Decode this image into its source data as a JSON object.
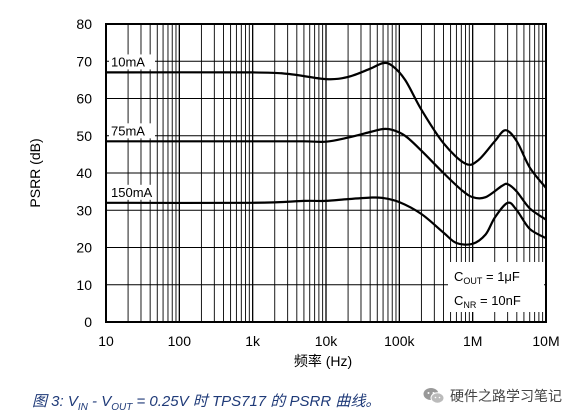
{
  "chart_data": {
    "type": "line",
    "title": "",
    "xlabel": "频率 (Hz)",
    "ylabel": "PSRR (dB)",
    "xscale": "log",
    "xlim": [
      10,
      10000000
    ],
    "ylim": [
      0,
      80
    ],
    "xticks": [
      {
        "value": 10,
        "label": "10"
      },
      {
        "value": 100,
        "label": "100"
      },
      {
        "value": 1000,
        "label": "1k"
      },
      {
        "value": 10000,
        "label": "10k"
      },
      {
        "value": 100000,
        "label": "100k"
      },
      {
        "value": 1000000,
        "label": "1M"
      },
      {
        "value": 10000000,
        "label": "10M"
      }
    ],
    "yticks": [
      0,
      10,
      20,
      30,
      40,
      50,
      60,
      70,
      80
    ],
    "grid": true,
    "series": [
      {
        "name": "10mA",
        "x": [
          10,
          1000,
          3000,
          10000,
          20000,
          40000,
          60000,
          80000,
          120000,
          200000,
          400000,
          800000,
          1200000,
          2000000,
          2800000,
          4000000,
          6000000,
          10000000
        ],
        "y": [
          67,
          67,
          66.6,
          65.2,
          65.8,
          68,
          69.5,
          68.8,
          65,
          57,
          48,
          42.5,
          43.5,
          48.5,
          51.5,
          48.5,
          41.5,
          36
        ]
      },
      {
        "name": "75mA",
        "x": [
          10,
          1000,
          5000,
          10000,
          20000,
          40000,
          60000,
          80000,
          120000,
          200000,
          400000,
          700000,
          1000000,
          1500000,
          2500000,
          3000000,
          4000000,
          6000000,
          10000000
        ],
        "y": [
          48.5,
          48.5,
          48.5,
          48.4,
          49.5,
          51,
          51.8,
          51.6,
          50,
          46,
          40,
          35.5,
          33.5,
          33.5,
          36.5,
          37,
          35,
          30.5,
          27.5
        ]
      },
      {
        "name": "150mA",
        "x": [
          10,
          1000,
          5000,
          10000,
          20000,
          40000,
          60000,
          100000,
          200000,
          400000,
          600000,
          1000000,
          1500000,
          2000000,
          3000000,
          4000000,
          6000000,
          10000000
        ],
        "y": [
          32,
          32,
          32.5,
          32.5,
          33,
          33.4,
          33.3,
          32.2,
          29,
          24,
          21.2,
          21,
          23.5,
          28,
          32,
          30,
          25,
          22.5
        ]
      }
    ],
    "annotations": {
      "cout": {
        "main": "C",
        "sub": "OUT",
        "rest": " = 1μF"
      },
      "cnr": {
        "main": "C",
        "sub": "NR",
        "rest": " = 10nF"
      }
    },
    "colors": {
      "line": "#000000",
      "grid": "#000000",
      "caption": "#1f3a78"
    }
  },
  "caption": {
    "prefix": "图 3: V",
    "sub1": "IN",
    "mid": " - V",
    "sub2": "OUT",
    "rest": " = 0.25V 时 TPS717 的 PSRR 曲线。"
  },
  "watermark": {
    "text": "硬件之路学习笔记",
    "icon": "wechat-icon"
  }
}
